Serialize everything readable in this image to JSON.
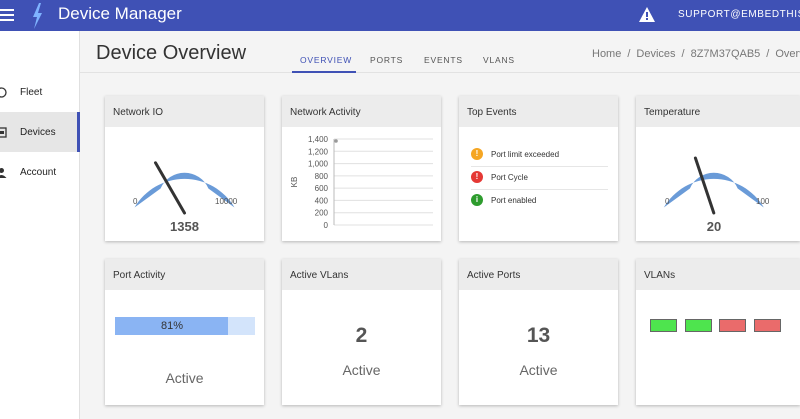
{
  "app": {
    "title": "Device Manager",
    "support": "SUPPORT@EMBEDTHIS.COM"
  },
  "sidebar": {
    "items": [
      {
        "label": "Fleet",
        "icon": "circle-icon"
      },
      {
        "label": "Devices",
        "icon": "device-icon"
      },
      {
        "label": "Account",
        "icon": "person-icon"
      }
    ]
  },
  "header": {
    "title": "Device Overview",
    "tabs": [
      "OVERVIEW",
      "PORTS",
      "EVENTS",
      "VLANS"
    ],
    "breadcrumb": [
      "Home",
      "Devices",
      "8Z7M37QAB5",
      "Overview"
    ]
  },
  "cards": {
    "network_io": {
      "title": "Network IO",
      "min": "0",
      "max": "10000",
      "value": "1358",
      "level": 0.1358
    },
    "network_activity": {
      "title": "Network Activity",
      "ylabel": "KB",
      "yticks": [
        "1,400",
        "1,200",
        "1,000",
        "800",
        "600",
        "400",
        "200",
        "0"
      ]
    },
    "top_events": {
      "title": "Top Events",
      "events": [
        {
          "label": "Port limit exceeded",
          "icon": "warning-icon",
          "color": "#f5a623"
        },
        {
          "label": "Port Cycle",
          "icon": "error-icon",
          "color": "#e53935"
        },
        {
          "label": "Port enabled",
          "icon": "info-icon",
          "color": "#2e9c2e"
        }
      ]
    },
    "temperature": {
      "title": "Temperature",
      "min": "0",
      "max": "100",
      "value": "20",
      "level": 0.2
    },
    "port_activity": {
      "title": "Port Activity",
      "percent": "81%",
      "fraction": 0.81,
      "status": "Active"
    },
    "active_vlans": {
      "title": "Active VLans",
      "count": "2",
      "status": "Active"
    },
    "active_ports": {
      "title": "Active Ports",
      "count": "13",
      "status": "Active"
    },
    "vlans": {
      "title": "VLANs",
      "states": [
        "#4ee44e",
        "#4ee44e",
        "#ea6b6b",
        "#ea6b6b"
      ]
    }
  },
  "chart_data": {
    "type": "line",
    "title": "Network Activity",
    "ylabel": "KB",
    "ylim": [
      0,
      1400
    ],
    "yticks": [
      0,
      200,
      400,
      600,
      800,
      1000,
      1200,
      1400
    ],
    "grid": true,
    "series": [
      {
        "values": [
          1400
        ]
      }
    ]
  },
  "colors": {
    "primary": "#3f51b5",
    "gauge": "#6a9bd8"
  }
}
